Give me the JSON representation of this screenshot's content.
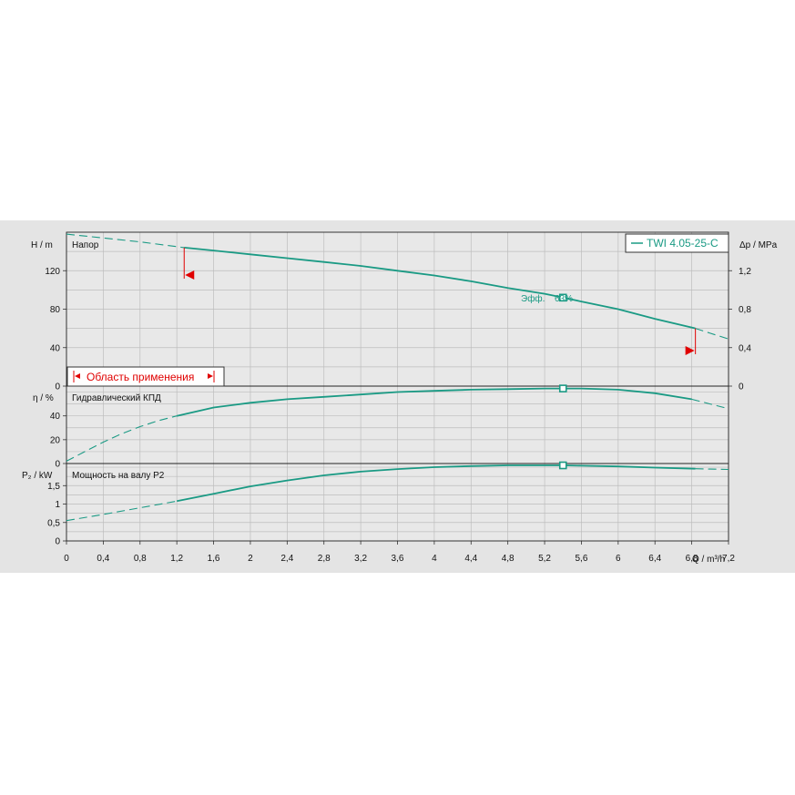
{
  "colors": {
    "curve": "#1a9a84",
    "grid": "#bdbdbd",
    "plot_bg": "#e8e8e8",
    "range": "#e00000"
  },
  "legend": {
    "label": "TWI 4.05-25-C"
  },
  "application_range": {
    "label": "Область применения"
  },
  "operating_point": {
    "label": "Эфф.",
    "value": "63%",
    "q": 5.4
  },
  "x_axis": {
    "label": "Q / m³/h",
    "ticks": [
      "0",
      "0,4",
      "0,8",
      "1,2",
      "1,6",
      "2",
      "2,4",
      "2,8",
      "3,2",
      "3,6",
      "4",
      "4,4",
      "4,8",
      "5,2",
      "5,6",
      "6",
      "6,4",
      "6,8",
      "7,2"
    ],
    "range": [
      0,
      7.2
    ]
  },
  "chart_data": [
    {
      "type": "line",
      "title": "Напор",
      "ylabel": "H / m",
      "ylabel_right": "Δp / MPa",
      "ylim": [
        0,
        160
      ],
      "yticks": [
        "0",
        "40",
        "80",
        "120"
      ],
      "yticks_right": [
        "0",
        "0,4",
        "0,8",
        "1,2",
        "Δp / MPa"
      ],
      "series": [
        {
          "name": "TWI 4.05-25-C",
          "style": "solid",
          "x": [
            1.28,
            1.6,
            2.0,
            2.4,
            2.8,
            3.2,
            3.6,
            4.0,
            4.4,
            4.8,
            5.2,
            5.4,
            5.6,
            6.0,
            6.4,
            6.84
          ],
          "y": [
            144,
            141,
            137,
            133,
            129,
            125,
            120,
            115,
            109,
            102,
            96,
            92,
            88,
            80,
            70,
            60
          ]
        },
        {
          "name": "",
          "style": "dashed",
          "x": [
            0.0,
            0.4,
            0.8,
            1.28
          ],
          "y": [
            158,
            154,
            150,
            144
          ]
        },
        {
          "name": "",
          "style": "dashed",
          "x": [
            6.84,
            7.0,
            7.2
          ],
          "y": [
            60,
            55,
            49
          ]
        }
      ],
      "range_markers": [
        1.28,
        6.84
      ]
    },
    {
      "type": "line",
      "title": "Гидравлический КПД",
      "ylabel": "η / %",
      "ylim": [
        0,
        65
      ],
      "yticks": [
        "0",
        "20",
        "40"
      ],
      "series": [
        {
          "name": "",
          "style": "dashed",
          "x": [
            0.0,
            0.2,
            0.4,
            0.6,
            0.8,
            1.0,
            1.2
          ],
          "y": [
            2,
            10,
            18,
            25,
            31,
            36,
            40
          ]
        },
        {
          "name": "",
          "style": "solid",
          "x": [
            1.2,
            1.6,
            2.0,
            2.4,
            2.8,
            3.2,
            3.6,
            4.0,
            4.4,
            4.8,
            5.2,
            5.4,
            5.6,
            6.0,
            6.4,
            6.8
          ],
          "y": [
            40,
            47,
            51,
            54,
            56,
            58,
            60,
            61,
            62,
            62.5,
            63,
            63,
            63,
            62,
            59,
            54
          ]
        },
        {
          "name": "",
          "style": "dashed",
          "x": [
            6.8,
            7.0,
            7.2
          ],
          "y": [
            54,
            50,
            46
          ]
        }
      ],
      "marker_x": 5.4,
      "marker_y": 63
    },
    {
      "type": "line",
      "title": "Мощность на валу P2",
      "ylabel": "P₂ / kW",
      "ylim": [
        0,
        2.1
      ],
      "yticks": [
        "0",
        "0,5",
        "1",
        "1,5"
      ],
      "series": [
        {
          "name": "",
          "style": "dashed",
          "x": [
            0.0,
            0.4,
            0.8,
            1.2
          ],
          "y": [
            0.55,
            0.72,
            0.9,
            1.08
          ]
        },
        {
          "name": "",
          "style": "solid",
          "x": [
            1.2,
            1.6,
            2.0,
            2.4,
            2.8,
            3.2,
            3.6,
            4.0,
            4.4,
            4.8,
            5.2,
            5.4,
            5.6,
            6.0,
            6.4,
            6.84
          ],
          "y": [
            1.08,
            1.28,
            1.48,
            1.64,
            1.78,
            1.88,
            1.95,
            2.0,
            2.03,
            2.05,
            2.05,
            2.05,
            2.04,
            2.02,
            1.99,
            1.96
          ]
        },
        {
          "name": "",
          "style": "dashed",
          "x": [
            6.84,
            7.0,
            7.2
          ],
          "y": [
            1.96,
            1.95,
            1.94
          ]
        }
      ],
      "marker_x": 5.4,
      "marker_y": 2.05
    }
  ]
}
